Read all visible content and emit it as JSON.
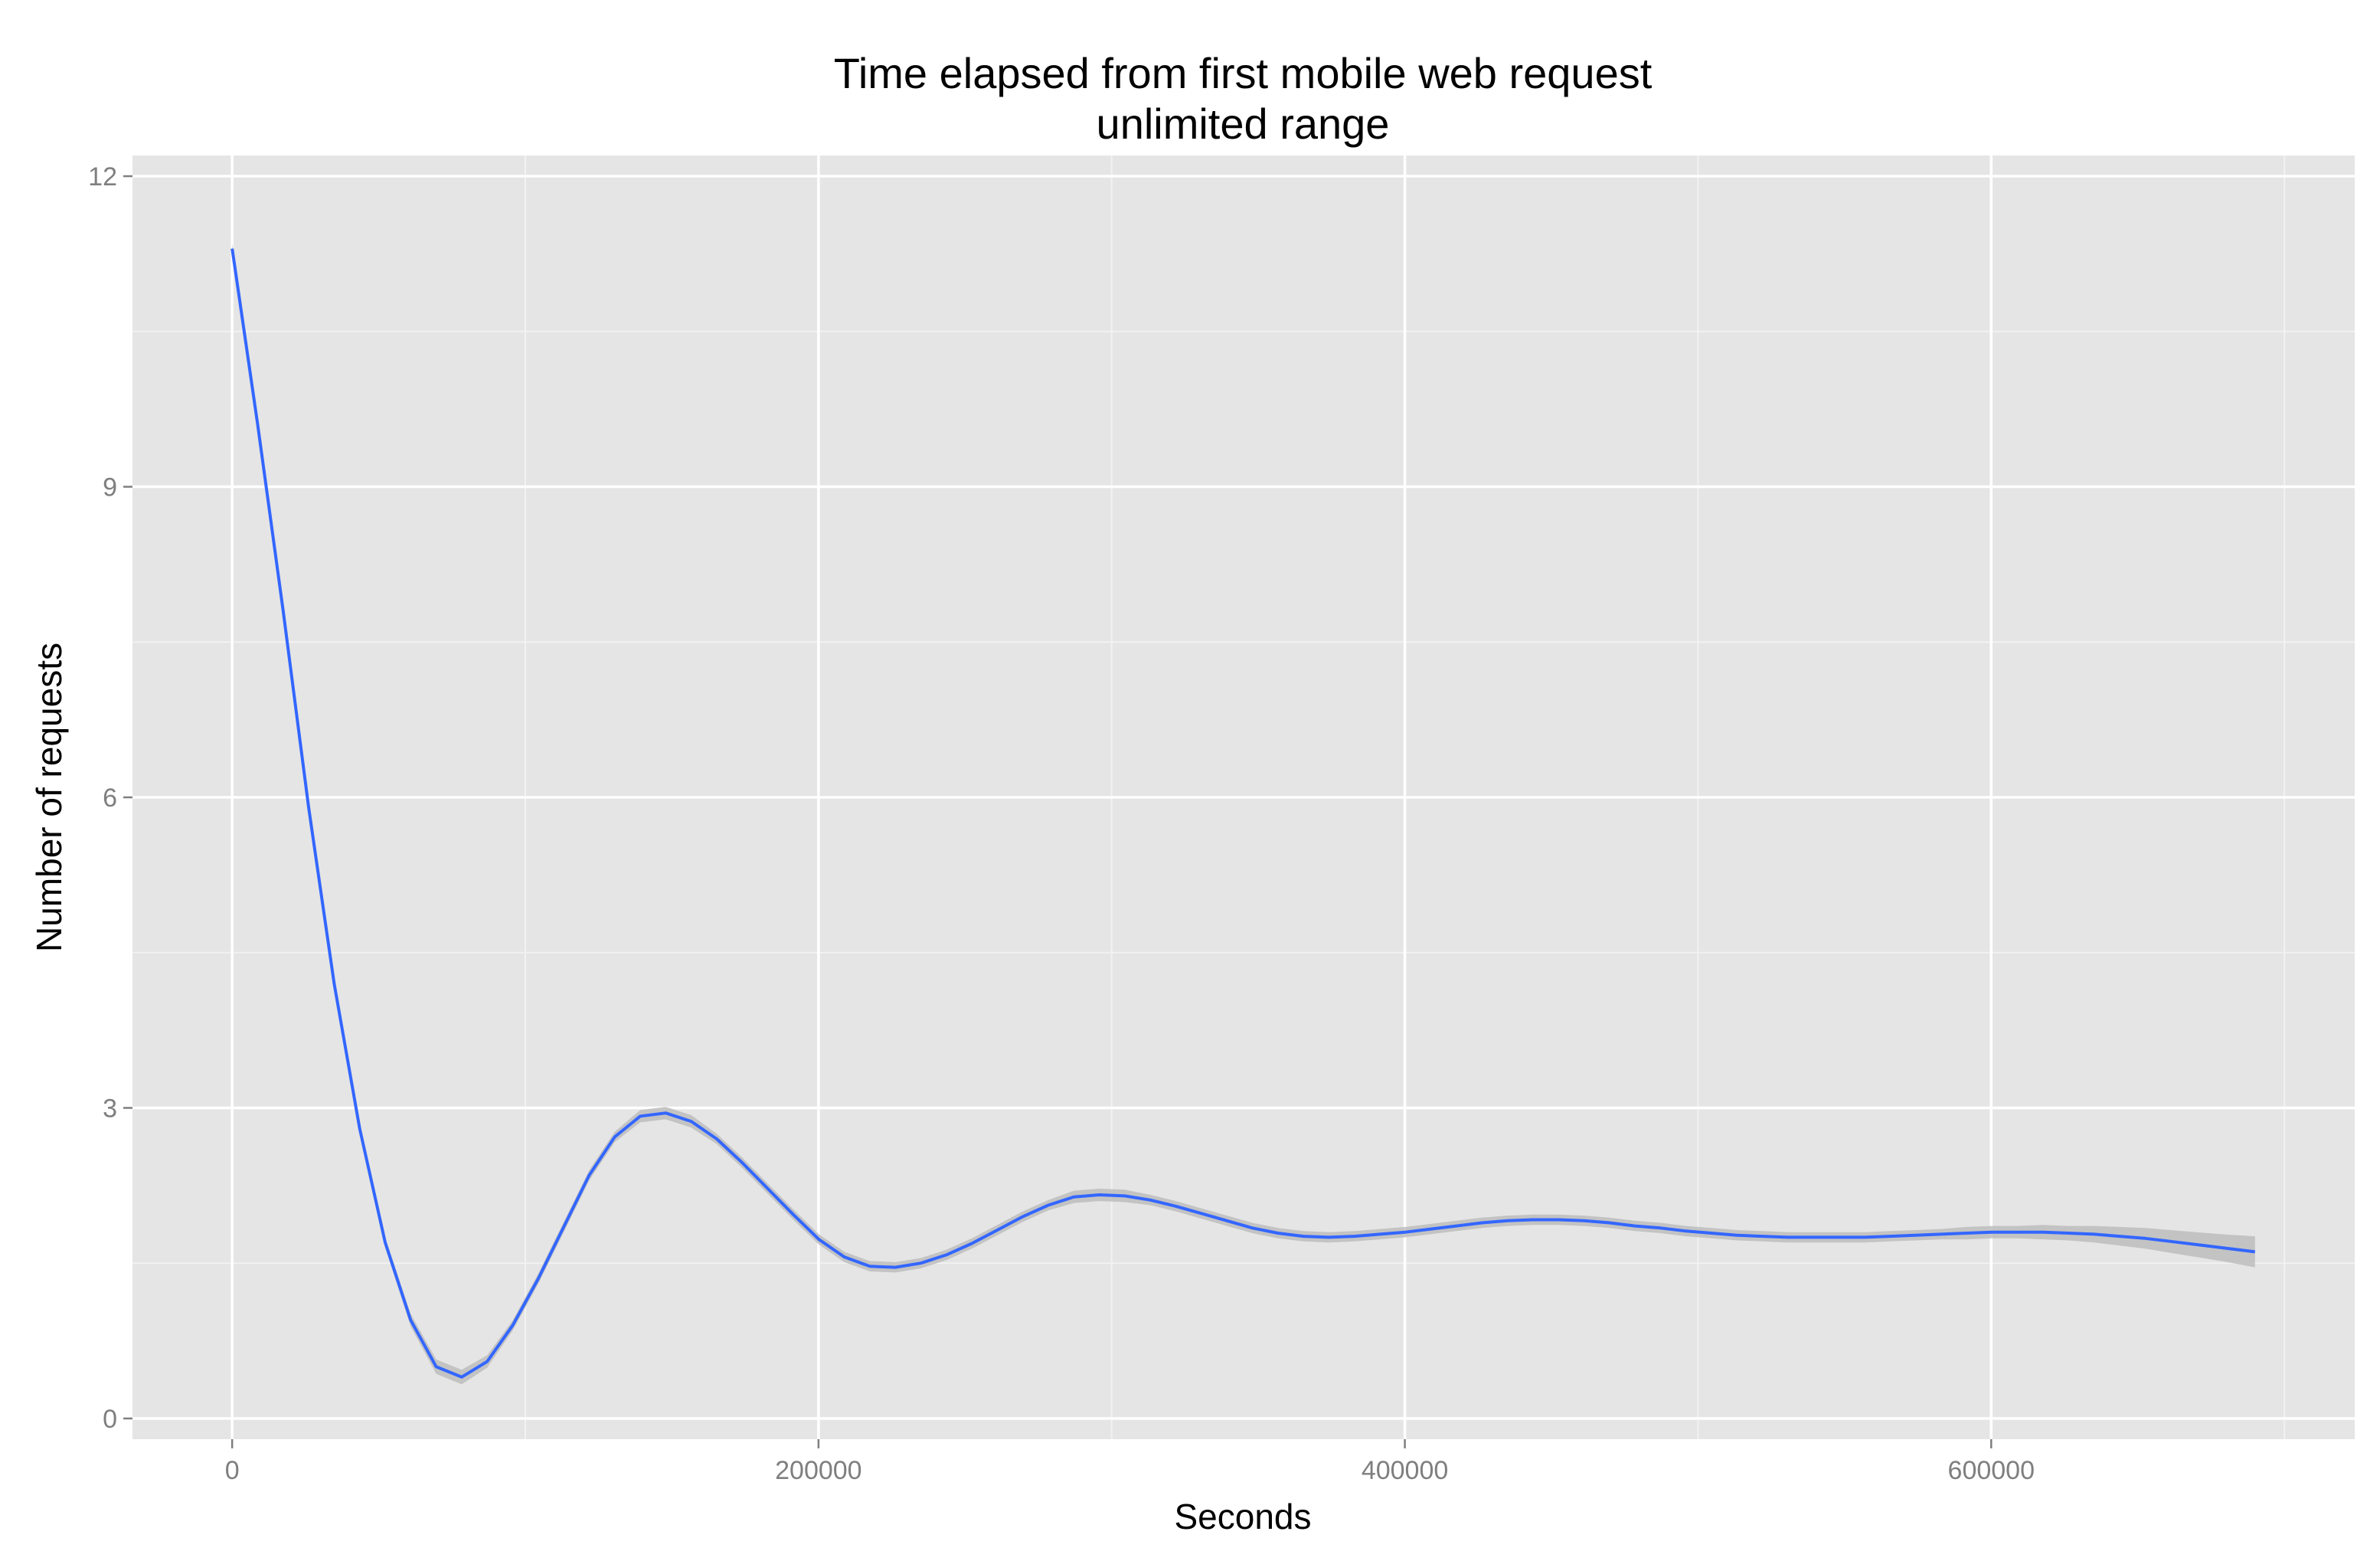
{
  "chart_data": {
    "type": "line",
    "title": "Time elapsed from first mobile web request",
    "subtitle": "unlimited range",
    "xlabel": "Seconds",
    "ylabel": "Number of requests",
    "xlim": [
      -34000,
      724000
    ],
    "ylim": [
      -0.2,
      12.2
    ],
    "x_ticks": [
      0,
      200000,
      400000,
      600000
    ],
    "x_tick_labels": [
      "0",
      "200000",
      "400000",
      "600000"
    ],
    "x_minor_ticks": [
      100000,
      300000,
      500000,
      700000
    ],
    "y_ticks": [
      0,
      3,
      6,
      9,
      12
    ],
    "y_tick_labels": [
      "0",
      "3",
      "6",
      "9",
      "12"
    ],
    "y_minor_ticks": [
      1.5,
      4.5,
      7.5,
      10.5
    ],
    "grid": true,
    "legend": "none",
    "colors": {
      "panel": "#e5e5e5",
      "grid_major": "#ffffff",
      "grid_minor": "#f2f2f2",
      "line": "#3366ff",
      "ribbon": "#bdbdbd"
    },
    "series": [
      {
        "x": [
          0,
          8700,
          17400,
          26100,
          34800,
          43500,
          52200,
          60900,
          69600,
          78300,
          87000,
          95700,
          104400,
          113100,
          121800,
          130500,
          139200,
          147900,
          156600,
          165300,
          174000,
          182700,
          191400,
          200100,
          208800,
          217500,
          226200,
          234900,
          243600,
          252300,
          261000,
          269700,
          278400,
          287100,
          295800,
          304500,
          313200,
          321900,
          330600,
          339300,
          348000,
          356700,
          365400,
          374100,
          382800,
          391500,
          400200,
          408900,
          417600,
          426300,
          435000,
          443700,
          452400,
          461100,
          469800,
          478500,
          487200,
          495900,
          504600,
          513300,
          522000,
          530700,
          539400,
          548100,
          556800,
          565500,
          574200,
          582900,
          591600,
          600300,
          609000,
          617700,
          626400,
          635100,
          643800,
          652500,
          661200,
          669900,
          678600,
          690000
        ],
        "y": [
          11.3,
          9.6,
          7.8,
          5.9,
          4.2,
          2.8,
          1.7,
          0.95,
          0.5,
          0.4,
          0.55,
          0.9,
          1.35,
          1.85,
          2.35,
          2.72,
          2.92,
          2.95,
          2.87,
          2.7,
          2.47,
          2.22,
          1.97,
          1.73,
          1.56,
          1.47,
          1.46,
          1.5,
          1.58,
          1.69,
          1.82,
          1.95,
          2.06,
          2.14,
          2.16,
          2.15,
          2.11,
          2.05,
          1.98,
          1.91,
          1.84,
          1.79,
          1.76,
          1.75,
          1.76,
          1.78,
          1.8,
          1.83,
          1.86,
          1.89,
          1.91,
          1.92,
          1.92,
          1.91,
          1.89,
          1.86,
          1.84,
          1.81,
          1.79,
          1.77,
          1.76,
          1.75,
          1.75,
          1.75,
          1.75,
          1.76,
          1.77,
          1.78,
          1.79,
          1.8,
          1.8,
          1.8,
          1.79,
          1.78,
          1.76,
          1.74,
          1.71,
          1.68,
          1.65,
          1.61
        ],
        "ribbon_halfwidth": [
          0.05,
          0.05,
          0.05,
          0.05,
          0.05,
          0.05,
          0.05,
          0.06,
          0.07,
          0.07,
          0.06,
          0.05,
          0.05,
          0.05,
          0.05,
          0.05,
          0.06,
          0.06,
          0.06,
          0.05,
          0.05,
          0.05,
          0.05,
          0.05,
          0.05,
          0.05,
          0.05,
          0.05,
          0.05,
          0.05,
          0.05,
          0.05,
          0.05,
          0.06,
          0.06,
          0.06,
          0.05,
          0.05,
          0.05,
          0.05,
          0.05,
          0.05,
          0.05,
          0.05,
          0.05,
          0.05,
          0.05,
          0.05,
          0.05,
          0.05,
          0.05,
          0.05,
          0.05,
          0.05,
          0.05,
          0.05,
          0.05,
          0.05,
          0.05,
          0.05,
          0.05,
          0.05,
          0.05,
          0.05,
          0.05,
          0.05,
          0.05,
          0.05,
          0.06,
          0.06,
          0.06,
          0.07,
          0.07,
          0.08,
          0.09,
          0.1,
          0.11,
          0.12,
          0.13,
          0.15
        ]
      }
    ]
  }
}
